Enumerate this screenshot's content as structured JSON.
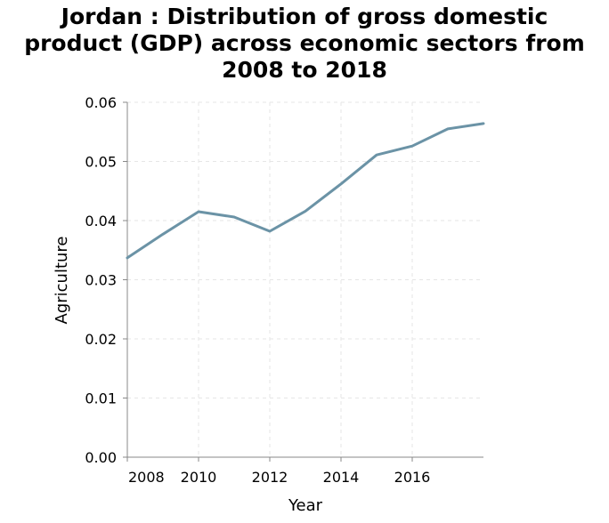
{
  "chart_data": {
    "type": "line",
    "title_lines": [
      "Jordan : Distribution of gross domestic",
      "product (GDP) across economic sectors from",
      "2008 to 2018"
    ],
    "xlabel": "Year",
    "ylabel": "Agriculture",
    "xlim": [
      2008,
      2018
    ],
    "ylim": [
      0,
      0.06
    ],
    "x_ticks": [
      2008,
      2010,
      2012,
      2014,
      2016
    ],
    "x_tick_labels": [
      "2008",
      "2010",
      "2012",
      "2014",
      "2016"
    ],
    "y_ticks": [
      0,
      0.01,
      0.02,
      0.03,
      0.04,
      0.05,
      0.06
    ],
    "y_tick_labels": [
      "0.00",
      "0.01",
      "0.02",
      "0.03",
      "0.04",
      "0.05",
      "0.06"
    ],
    "grid": true,
    "line_color": "#6b93a6",
    "grid_color": "#e6e6e6",
    "axis_color": "#888888",
    "series": [
      {
        "x": [
          2008,
          2009,
          2010,
          2011,
          2012,
          2013,
          2014,
          2015,
          2016,
          2017,
          2018
        ],
        "values": [
          0.0337,
          0.0377,
          0.0415,
          0.0406,
          0.0382,
          0.0416,
          0.0462,
          0.0511,
          0.0526,
          0.0555,
          0.0564
        ]
      }
    ]
  }
}
